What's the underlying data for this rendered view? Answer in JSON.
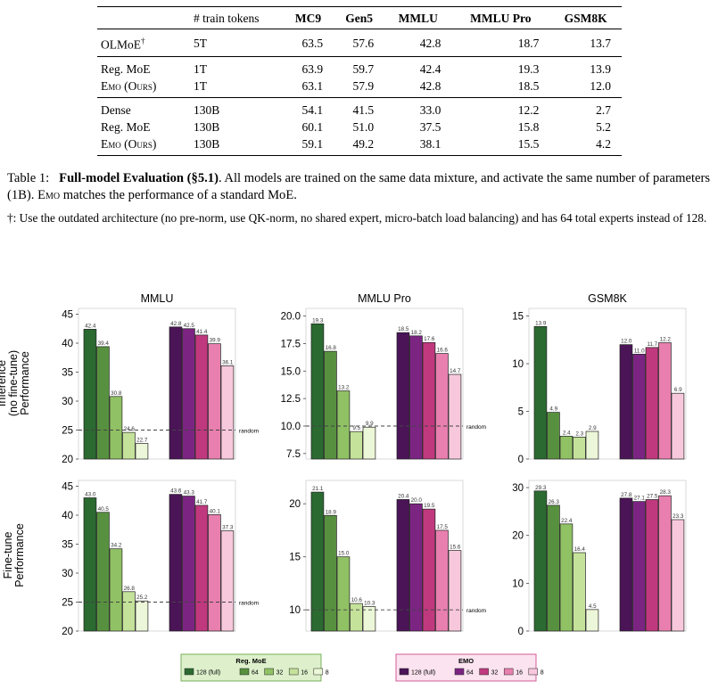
{
  "table": {
    "header": {
      "model": "",
      "tokens": "# train tokens",
      "cols": [
        "MC9",
        "Gen5",
        "MMLU",
        "MMLU Pro",
        "GSM8K"
      ]
    },
    "groups": [
      {
        "rows": [
          {
            "model": "OLMoE",
            "model_sup": "†",
            "tokens": "5T",
            "values": [
              "63.5",
              "57.6",
              "42.8",
              "18.7",
              "13.7"
            ]
          }
        ]
      },
      {
        "rows": [
          {
            "model": "Reg. MoE",
            "tokens": "1T",
            "values": [
              "63.9",
              "59.7",
              "42.4",
              "19.3",
              "13.9"
            ]
          },
          {
            "model": "Emo (Ours)",
            "tokens": "1T",
            "values": [
              "63.1",
              "57.9",
              "42.8",
              "18.5",
              "12.0"
            ]
          }
        ]
      },
      {
        "rows": [
          {
            "model": "Dense",
            "tokens": "130B",
            "values": [
              "54.1",
              "41.5",
              "33.0",
              "12.2",
              "2.7"
            ]
          },
          {
            "model": "Reg. MoE",
            "tokens": "130B",
            "values": [
              "60.1",
              "51.0",
              "37.5",
              "15.8",
              "5.2"
            ]
          },
          {
            "model": "Emo (Ours)",
            "tokens": "130B",
            "values": [
              "59.1",
              "49.2",
              "38.1",
              "15.5",
              "4.2"
            ]
          }
        ]
      }
    ]
  },
  "caption": {
    "label": "Table 1:",
    "title": "Full-model Evaluation (§5.1)",
    "text_a": ". All models are trained on the same data mixture, and activate the same number of parameters (1B). ",
    "emo": "Emo",
    "text_b": " matches the performance of a standard MoE.",
    "note": "†: Use the outdated architecture (no pre-norm, use QK-norm, no shared expert, micro-batch load balancing) and has 64 total experts instead of 128."
  },
  "chart_data": {
    "type": "bar",
    "row_labels": [
      "Inference\n(no fine-tune)\nPerformance",
      "Fine-tune\nPerformance"
    ],
    "random_label": "random",
    "groups": [
      "Reg. MoE",
      "EMO"
    ],
    "categories": [
      "128 (full)",
      "64",
      "32",
      "16",
      "8"
    ],
    "colors": {
      "Reg. MoE": [
        "#2b6a31",
        "#57913f",
        "#90c164",
        "#c4e29a",
        "#ecf6d8"
      ],
      "EMO": [
        "#4b1457",
        "#7b2482",
        "#c0397e",
        "#e87fae",
        "#f7c8dc"
      ]
    },
    "legend": {
      "placement": "bottom-center",
      "bg": {
        "Reg. MoE": "#ddf0cb",
        "EMO": "#fbe3ef"
      },
      "border": {
        "Reg. MoE": "#6aa84f",
        "EMO": "#d14b8f"
      }
    },
    "panels": [
      {
        "row": 0,
        "col": 0,
        "title": "MMLU",
        "ylim": [
          20,
          46
        ],
        "yticks": [
          "20",
          "25",
          "30",
          "35",
          "40",
          "45"
        ],
        "random": 25,
        "series": [
          {
            "name": "Reg. MoE",
            "values": [
              42.4,
              39.4,
              30.8,
              24.6,
              22.7
            ]
          },
          {
            "name": "EMO",
            "values": [
              42.8,
              42.5,
              41.4,
              39.9,
              36.1
            ]
          }
        ]
      },
      {
        "row": 0,
        "col": 1,
        "title": "MMLU Pro",
        "ylim": [
          7,
          20.7
        ],
        "yticks": [
          "7.5",
          "10.0",
          "12.5",
          "15.0",
          "17.5",
          "20.0"
        ],
        "random": 10,
        "series": [
          {
            "name": "Reg. MoE",
            "values": [
              19.3,
              16.8,
              13.2,
              9.5,
              9.9
            ]
          },
          {
            "name": "EMO",
            "values": [
              18.5,
              18.2,
              17.6,
              16.6,
              14.7
            ]
          }
        ]
      },
      {
        "row": 0,
        "col": 2,
        "title": "GSM8K",
        "ylim": [
          0,
          15.8
        ],
        "yticks": [
          "0",
          "5",
          "10",
          "15"
        ],
        "random": null,
        "series": [
          {
            "name": "Reg. MoE",
            "values": [
              13.9,
              4.9,
              2.4,
              2.3,
              2.9
            ]
          },
          {
            "name": "EMO",
            "values": [
              12.0,
              11.0,
              11.7,
              12.2,
              6.9
            ]
          }
        ]
      },
      {
        "row": 1,
        "col": 0,
        "title": "",
        "ylim": [
          20,
          46
        ],
        "yticks": [
          "20",
          "25",
          "30",
          "35",
          "40",
          "45"
        ],
        "random": 25,
        "series": [
          {
            "name": "Reg. MoE",
            "values": [
              43.0,
              40.5,
              34.2,
              26.8,
              25.2
            ]
          },
          {
            "name": "EMO",
            "values": [
              43.6,
              43.3,
              41.7,
              40.1,
              37.3
            ]
          }
        ]
      },
      {
        "row": 1,
        "col": 1,
        "title": "",
        "ylim": [
          8,
          22.2
        ],
        "yticks": [
          "10",
          "15",
          "20"
        ],
        "random": 10,
        "series": [
          {
            "name": "Reg. MoE",
            "values": [
              21.1,
              18.9,
              15.0,
              10.6,
              10.3
            ]
          },
          {
            "name": "EMO",
            "values": [
              20.4,
              20.0,
              19.5,
              17.5,
              15.6
            ]
          }
        ]
      },
      {
        "row": 1,
        "col": 2,
        "title": "",
        "ylim": [
          0,
          31.5
        ],
        "yticks": [
          "0",
          "10",
          "20",
          "30"
        ],
        "random": null,
        "series": [
          {
            "name": "Reg. MoE",
            "values": [
              29.3,
              26.3,
              22.4,
              16.4,
              4.5
            ]
          },
          {
            "name": "EMO",
            "values": [
              27.8,
              27.1,
              27.5,
              28.3,
              23.3
            ]
          }
        ]
      }
    ]
  }
}
